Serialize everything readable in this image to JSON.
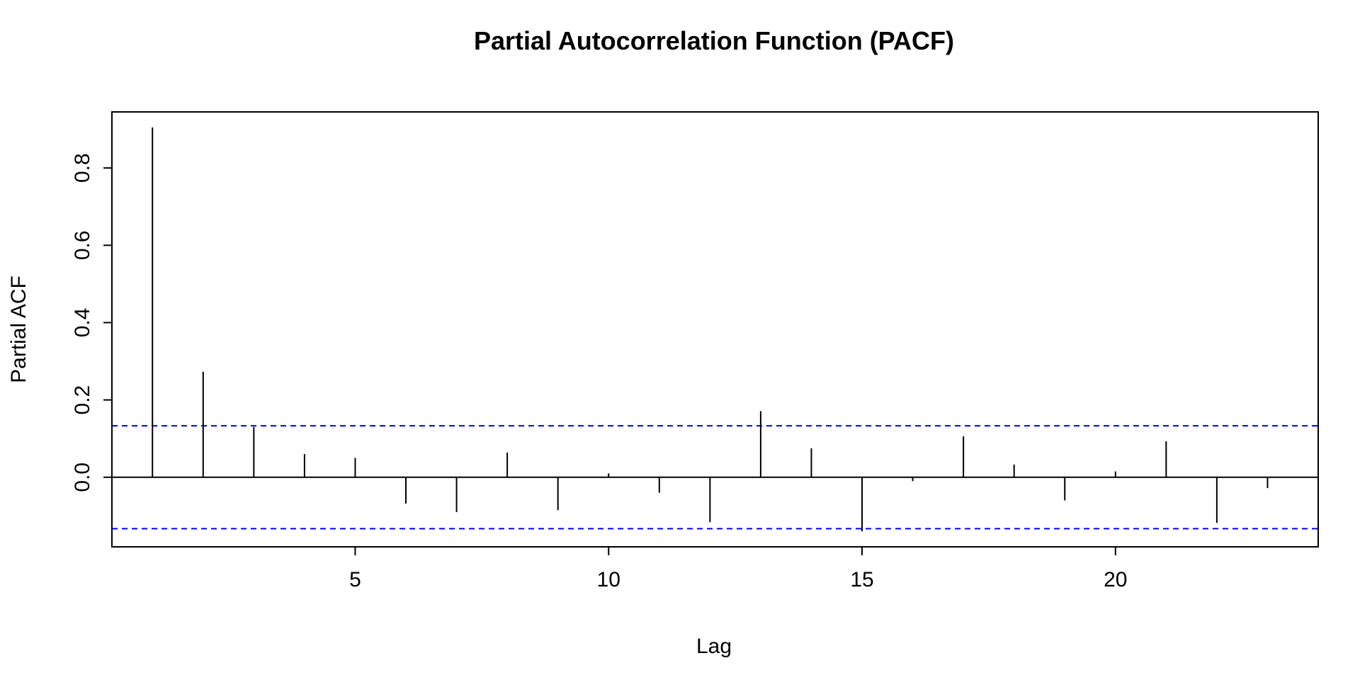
{
  "chart_data": {
    "type": "bar",
    "title": "Partial Autocorrelation Function (PACF)",
    "xlabel": "Lag",
    "ylabel": "Partial ACF",
    "xlim": [
      0.2,
      24
    ],
    "ylim": [
      -0.18,
      0.945
    ],
    "x_ticks": [
      5,
      10,
      15,
      20
    ],
    "y_ticks": [
      0.0,
      0.2,
      0.4,
      0.6,
      0.8
    ],
    "y_tick_labels": [
      "0.0",
      "0.2",
      "0.4",
      "0.6",
      "0.8"
    ],
    "lags": [
      1,
      2,
      3,
      4,
      5,
      6,
      7,
      8,
      9,
      10,
      11,
      12,
      13,
      14,
      15,
      16,
      17,
      18,
      19,
      20,
      21,
      22,
      23
    ],
    "values": [
      0.905,
      0.273,
      0.13,
      0.06,
      0.05,
      -0.068,
      -0.09,
      0.064,
      -0.085,
      0.01,
      -0.04,
      -0.116,
      0.171,
      0.075,
      -0.14,
      -0.01,
      0.106,
      0.033,
      -0.06,
      0.015,
      0.093,
      -0.118,
      -0.028
    ],
    "confidence_bound": 0.133,
    "zero_line": true,
    "grid": false,
    "colors": {
      "bars": "#000000",
      "confidence": "#0000ff",
      "frame": "#000000"
    }
  }
}
